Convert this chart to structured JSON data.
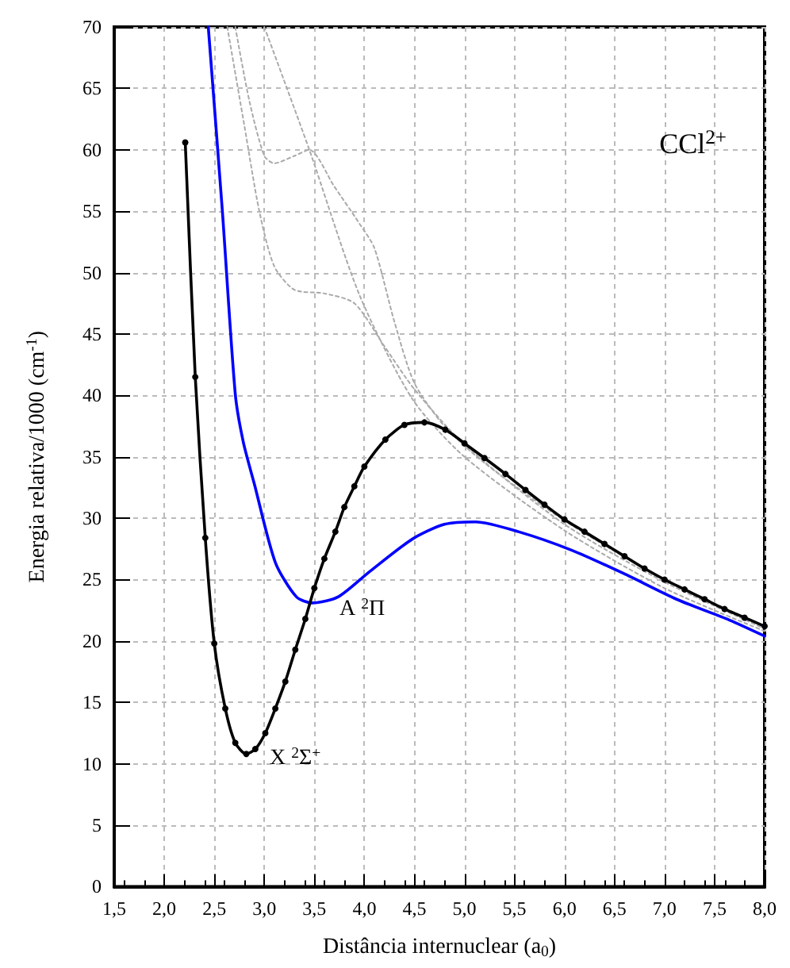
{
  "chart_data": {
    "type": "line",
    "xlabel": "Distância internuclear (a$_{0}$)",
    "ylabel": "Energia relativa/1000 (cm$^{-1}$)",
    "xlim": [
      1.5,
      8.0
    ],
    "xticks": [
      {
        "value": 1.5,
        "label": "1,5"
      },
      {
        "value": 2.0,
        "label": "2,0"
      },
      {
        "value": 2.5,
        "label": "2,5"
      },
      {
        "value": 3.0,
        "label": "3,0"
      },
      {
        "value": 3.5,
        "label": "3,5"
      },
      {
        "value": 4.0,
        "label": "4,0"
      },
      {
        "value": 4.5,
        "label": "4,5"
      },
      {
        "value": 5.0,
        "label": "5,0"
      },
      {
        "value": 5.5,
        "label": "5,5"
      },
      {
        "value": 6.0,
        "label": "6,0"
      },
      {
        "value": 6.5,
        "label": "6,5"
      },
      {
        "value": 7.0,
        "label": "7,0"
      },
      {
        "value": 7.5,
        "label": "7,5"
      },
      {
        "value": 8.0,
        "label": "8,0"
      }
    ],
    "ylim": [
      0,
      70
    ],
    "yticks": [
      0,
      5,
      10,
      15,
      20,
      25,
      30,
      35,
      40,
      45,
      50,
      55,
      60,
      65,
      70
    ],
    "grid": true,
    "series": [
      {
        "color": "#aaaaaa",
        "line_style": "dotted",
        "marker": "none",
        "x": [
          2.71,
          2.85,
          3.0,
          3.1,
          3.3,
          3.45,
          3.7,
          3.95,
          4.1,
          4.3,
          4.5,
          4.8,
          5.2,
          6.0,
          7.0,
          8.0
        ],
        "values": [
          70,
          64,
          59.5,
          58.9,
          59.5,
          60.0,
          57,
          54,
          52,
          46,
          41,
          37.5,
          34.5,
          29.8,
          25,
          21.2
        ]
      },
      {
        "color": "#aaaaaa",
        "line_style": "dotted",
        "marker": "none",
        "x": [
          2.63,
          2.8,
          2.95,
          3.1,
          3.3,
          3.6,
          3.9,
          4.2,
          4.5,
          5.0,
          6.0,
          7.0,
          8.0
        ],
        "values": [
          70,
          62,
          55,
          50.5,
          48.6,
          48.3,
          47.5,
          44,
          40.5,
          36,
          29.5,
          24.8,
          21
        ]
      },
      {
        "color": "#aaaaaa",
        "line_style": "dotted",
        "marker": "none",
        "x": [
          3.0,
          3.45,
          3.95,
          4.48,
          5.0,
          6.0,
          7.0,
          8.0
        ],
        "values": [
          70,
          60,
          48.2,
          39.7,
          35,
          29,
          24.3,
          20.8
        ]
      },
      {
        "color": "#0000ff",
        "line_style": "solid",
        "marker": "none",
        "x": [
          2.44,
          2.58,
          2.71,
          2.79,
          2.9,
          3.11,
          3.32,
          3.48,
          3.74,
          4.06,
          4.48,
          4.8,
          5.11,
          5.54,
          6.07,
          6.59,
          7.12,
          7.65,
          8.0
        ],
        "values": [
          70,
          55.1,
          40.1,
          36.2,
          32.8,
          26.4,
          23.6,
          23.1,
          23.6,
          25.7,
          28.3,
          29.5,
          29.7,
          28.9,
          27.4,
          25.5,
          23.4,
          21.7,
          20.4
        ]
      },
      {
        "color": "#000000",
        "line_style": "solid",
        "marker": "circle",
        "x": [
          2.21,
          2.31,
          2.41,
          2.5,
          2.61,
          2.71,
          2.82,
          2.91,
          3.01,
          3.11,
          3.21,
          3.31,
          3.41,
          3.5,
          3.6,
          3.71,
          3.8,
          3.9,
          4.0,
          4.21,
          4.4,
          4.6,
          4.81,
          5.0,
          5.2,
          5.41,
          5.61,
          5.8,
          6.0,
          6.2,
          6.4,
          6.6,
          6.8,
          7.0,
          7.2,
          7.4,
          7.6,
          7.8,
          8.0
        ],
        "values": [
          60.6,
          41.5,
          28.4,
          19.8,
          14.5,
          11.7,
          10.8,
          11.2,
          12.5,
          14.5,
          16.7,
          19.3,
          21.8,
          24.3,
          26.7,
          28.9,
          30.9,
          32.6,
          34.2,
          36.4,
          37.6,
          37.8,
          37.2,
          36.1,
          34.9,
          33.6,
          32.3,
          31.1,
          29.9,
          28.9,
          27.9,
          26.9,
          25.9,
          25.0,
          24.2,
          23.4,
          22.6,
          21.9,
          21.2
        ]
      }
    ],
    "annotations": [
      "CCl$^{2+}$",
      "A $^{2}$Π",
      "X $^{2}$Σ$^{+}$"
    ]
  }
}
